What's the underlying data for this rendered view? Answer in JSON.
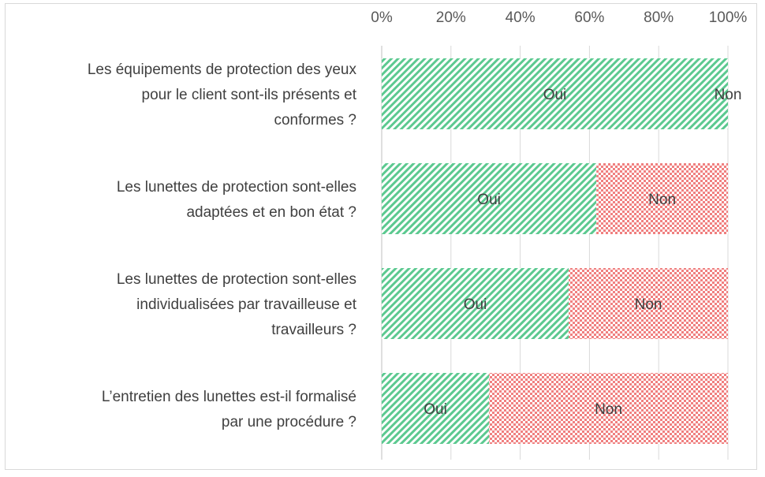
{
  "chart_data": {
    "type": "bar",
    "orientation": "horizontal",
    "stacked": "percent",
    "categories": [
      [
        "Les équipements de protection des yeux",
        "pour le client sont-ils présents et",
        "conformes ?"
      ],
      [
        "Les lunettes de protection sont-elles",
        "adaptées et en bon état ?"
      ],
      [
        "Les lunettes de protection sont-elles",
        "individualisées par travailleuse et",
        "travailleurs ?"
      ],
      [
        "L’entretien des lunettes est-il formalisé",
        "par une procédure ?"
      ]
    ],
    "series": [
      {
        "name": "Oui",
        "values": [
          100,
          62,
          54,
          31
        ],
        "color": "#5cc990",
        "pattern": "diagonal-stripes",
        "label": "Oui"
      },
      {
        "name": "Non",
        "values": [
          0,
          38,
          46,
          69
        ],
        "color": "#f08080",
        "pattern": "checkerboard",
        "label": "Non"
      }
    ],
    "xlim": [
      0,
      100
    ],
    "xticks": [
      "0%",
      "20%",
      "40%",
      "60%",
      "80%",
      "100%"
    ],
    "x_axis_position": "top",
    "grid": true,
    "legend": "none"
  }
}
